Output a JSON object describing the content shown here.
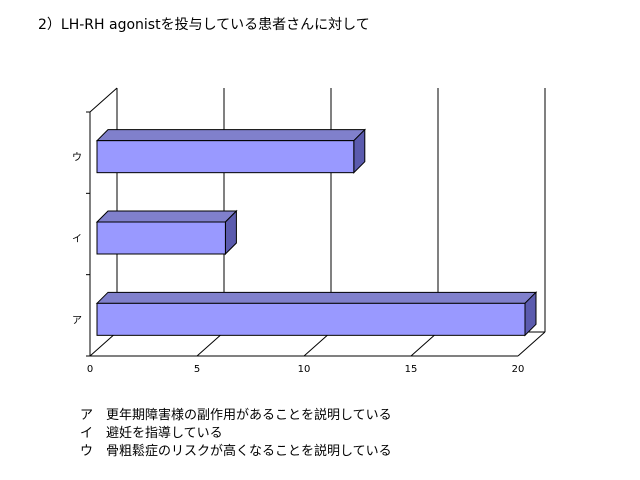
{
  "title": "2）LH-RH agonistを投与している患者さんに対して",
  "chart_data": {
    "type": "bar",
    "orientation": "horizontal",
    "categories": [
      "ア",
      "イ",
      "ウ"
    ],
    "values": [
      20,
      6,
      12
    ],
    "xlim": [
      0,
      20
    ],
    "xticks": [
      "0",
      "5",
      "10",
      "15",
      "20"
    ],
    "grid": true,
    "bar_color": "#9999ff",
    "bar_side_color": "#5b5bae",
    "bar_top_color": "#8080cc"
  },
  "legend": [
    {
      "key": "ア",
      "text": "更年期障害様の副作用があることを説明している"
    },
    {
      "key": "イ",
      "text": "避妊を指導している"
    },
    {
      "key": "ウ",
      "text": "骨粗鬆症のリスクが高くなることを説明している"
    }
  ]
}
